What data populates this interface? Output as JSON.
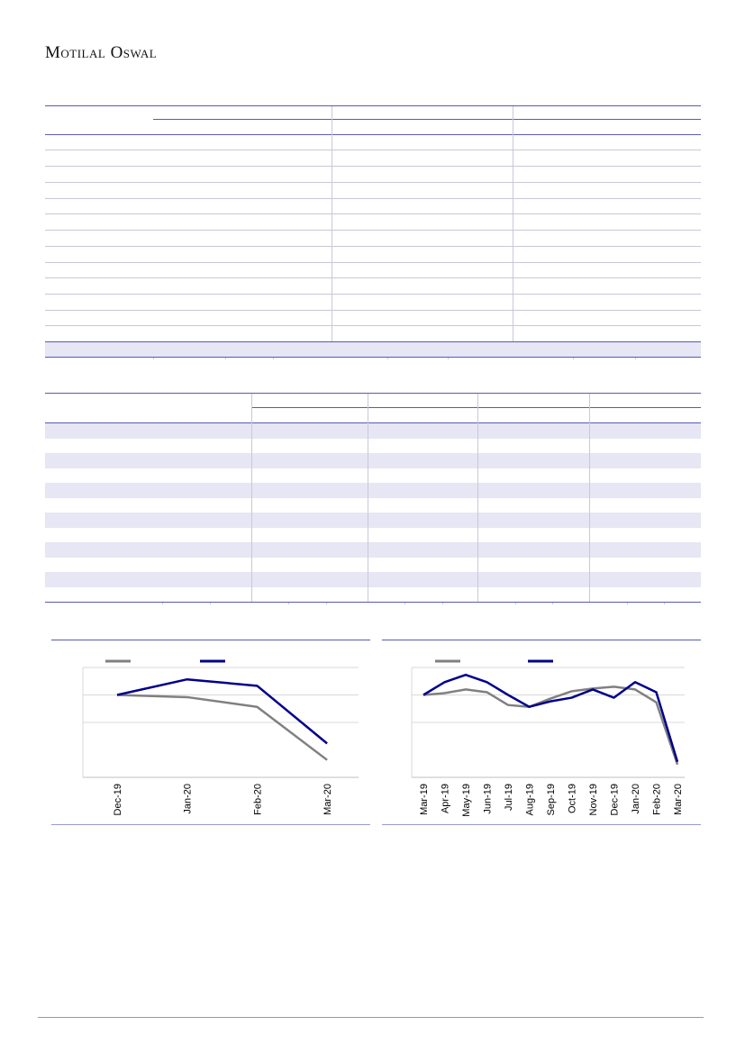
{
  "header": {
    "logo_text": "Motilal Oswal"
  },
  "colors": {
    "rule": "#5a5ab4",
    "light_rule": "#c8c8d8",
    "band": "#e6e6f5",
    "series_gray": "#808080",
    "series_navy": "#00008b"
  },
  "chart_data": [
    {
      "type": "line",
      "x": [
        "Dec-19",
        "Jan-20",
        "Feb-20",
        "Mar-20"
      ],
      "series": [
        {
          "color": "#808080",
          "values": [
            100.0,
            98.8,
            93.5,
            64.5
          ]
        },
        {
          "color": "#00008b",
          "values": [
            100.0,
            108.5,
            105.0,
            73.5
          ]
        }
      ],
      "grid": true,
      "legend": "top-left"
    },
    {
      "type": "line",
      "x": [
        "Mar-19",
        "Apr-19",
        "May-19",
        "Jun-19",
        "Jul-19",
        "Aug-19",
        "Sep-19",
        "Oct-19",
        "Nov-19",
        "Dec-19",
        "Jan-20",
        "Feb-20",
        "Mar-20"
      ],
      "series": [
        {
          "color": "#808080",
          "values": [
            100,
            101,
            103,
            101.5,
            94.5,
            93.5,
            98,
            102,
            103.5,
            104.5,
            103,
            96,
            62
          ]
        },
        {
          "color": "#00008b",
          "values": [
            100,
            107,
            111,
            107,
            100,
            93.5,
            96.5,
            98.5,
            103,
            98.5,
            107,
            101.5,
            63.5
          ]
        }
      ],
      "grid": true,
      "legend": "top-left"
    }
  ]
}
